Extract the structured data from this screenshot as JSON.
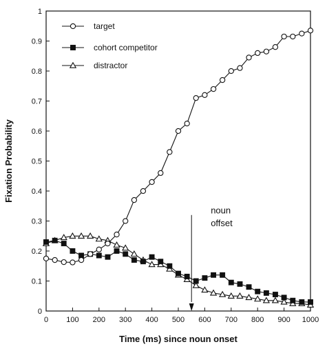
{
  "chart_data": {
    "type": "line",
    "title": "",
    "xlabel": "Time (ms) since noun onset",
    "ylabel": "Fixation Probability",
    "xlim": [
      0,
      1000
    ],
    "ylim": [
      0,
      1
    ],
    "x_ticks": [
      "0",
      "100",
      "200",
      "300",
      "400",
      "500",
      "600",
      "700",
      "800",
      "900",
      "1000"
    ],
    "y_ticks": [
      "0",
      "0.1",
      "0.2",
      "0.3",
      "0.4",
      "0.5",
      "0.6",
      "0.7",
      "0.8",
      "0.9",
      "1"
    ],
    "grid": false,
    "legend_position": "top-left",
    "x": [
      0,
      33,
      67,
      100,
      133,
      167,
      200,
      233,
      267,
      300,
      333,
      367,
      400,
      433,
      467,
      500,
      533,
      567,
      600,
      633,
      667,
      700,
      733,
      767,
      800,
      833,
      867,
      900,
      933,
      967,
      1000
    ],
    "series": [
      {
        "name": "target",
        "marker": "circle-open",
        "values": [
          0.175,
          0.17,
          0.163,
          0.162,
          0.17,
          0.19,
          0.205,
          0.225,
          0.255,
          0.3,
          0.37,
          0.4,
          0.43,
          0.46,
          0.53,
          0.6,
          0.625,
          0.71,
          0.72,
          0.74,
          0.77,
          0.8,
          0.81,
          0.845,
          0.86,
          0.865,
          0.88,
          0.915,
          0.915,
          0.925,
          0.935
        ]
      },
      {
        "name": "cohort competitor",
        "marker": "square-filled",
        "values": [
          0.23,
          0.235,
          0.225,
          0.2,
          0.185,
          0.19,
          0.185,
          0.18,
          0.2,
          0.19,
          0.17,
          0.165,
          0.18,
          0.165,
          0.15,
          0.125,
          0.115,
          0.1,
          0.11,
          0.12,
          0.12,
          0.095,
          0.09,
          0.08,
          0.065,
          0.06,
          0.055,
          0.045,
          0.035,
          0.03,
          0.03
        ]
      },
      {
        "name": "distractor",
        "marker": "triangle-open",
        "values": [
          0.225,
          0.235,
          0.245,
          0.25,
          0.25,
          0.25,
          0.24,
          0.235,
          0.22,
          0.21,
          0.19,
          0.17,
          0.155,
          0.155,
          0.14,
          0.12,
          0.105,
          0.085,
          0.07,
          0.06,
          0.055,
          0.05,
          0.05,
          0.045,
          0.04,
          0.035,
          0.035,
          0.03,
          0.025,
          0.025,
          0.02
        ]
      }
    ],
    "annotation": {
      "line1": "noun",
      "line2": "offset",
      "x": 550
    }
  }
}
